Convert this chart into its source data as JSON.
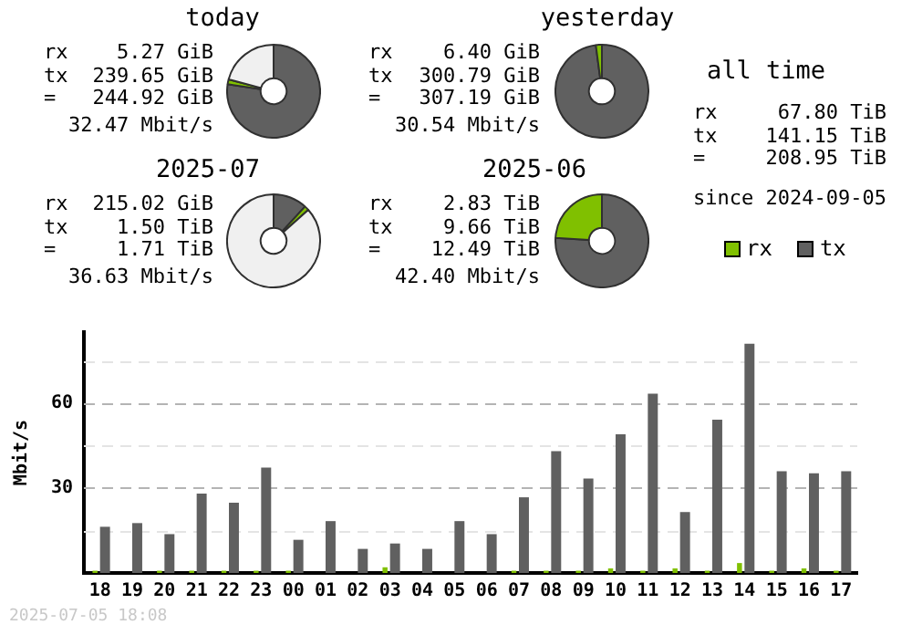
{
  "chart_data": [
    {
      "type": "donut",
      "title": "today",
      "categories": [
        null,
        null,
        null
      ],
      "values": [
        77.4,
        1.7,
        20.9
      ],
      "colors": [
        "#606060",
        "#80c000",
        "#f0f0f0"
      ],
      "annotations": [
        "rx",
        "5.27 GiB",
        "tx",
        "239.65 GiB",
        "=",
        "244.92 GiB",
        "32.47 Mbit/s"
      ]
    },
    {
      "type": "donut",
      "title": "yesterday",
      "categories": [
        null,
        null
      ],
      "values": [
        97.9,
        2.1
      ],
      "colors": [
        "#606060",
        "#80c000"
      ],
      "annotations": [
        "rx",
        "6.40 GiB",
        "tx",
        "300.79 GiB",
        "=",
        "307.19 GiB",
        "30.54 Mbit/s"
      ]
    },
    {
      "type": "other",
      "title": "all time",
      "annotations": [
        "rx",
        "67.80 TiB",
        "tx",
        "141.15 TiB",
        "=",
        "208.95 TiB",
        "since 2024-09-05"
      ]
    },
    {
      "type": "donut",
      "title": "2025-07",
      "categories": [
        null,
        null,
        null
      ],
      "values": [
        11.8,
        1.6,
        86.6
      ],
      "colors": [
        "#606060",
        "#80c000",
        "#f0f0f0"
      ],
      "annotations": [
        "rx",
        "215.02 GiB",
        "tx",
        "1.50 TiB",
        "=",
        "1.71 TiB",
        "36.63 Mbit/s"
      ]
    },
    {
      "type": "donut",
      "title": "2025-06",
      "categories": [
        null,
        null
      ],
      "values": [
        76,
        24
      ],
      "colors": [
        "#606060",
        "#80c000"
      ],
      "annotations": [
        "rx",
        "2.83 TiB",
        "tx",
        "9.66 TiB",
        "=",
        "12.49 TiB",
        "42.40 Mbit/s"
      ]
    },
    {
      "type": "bar",
      "ylabel": "Mbit/s",
      "categories": [
        "18",
        "19",
        "20",
        "21",
        "22",
        "23",
        "00",
        "01",
        "02",
        "03",
        "04",
        "05",
        "06",
        "07",
        "08",
        "09",
        "10",
        "11",
        "12",
        "13",
        "14",
        "15",
        "16",
        "17"
      ],
      "series": [
        {
          "name": "rx",
          "color": "#80c000",
          "values": [
            0.8,
            0,
            0.8,
            0.8,
            0.8,
            0.8,
            0.8,
            0,
            0,
            2,
            0,
            0,
            0,
            0.8,
            0.8,
            0.8,
            1.6,
            0.8,
            1.6,
            0.8,
            3.5,
            0.8,
            1.6,
            0.8
          ]
        },
        {
          "name": "tx",
          "color": "#606060",
          "values": [
            16.3,
            17.6,
            13.7,
            28,
            24.8,
            37.2,
            11.7,
            18.3,
            8.5,
            10.4,
            8.5,
            18.3,
            13.7,
            26.7,
            43,
            33.3,
            48.9,
            63.3,
            21.5,
            54.1,
            80.9,
            35.9,
            35.2,
            35.9
          ]
        }
      ],
      "ylim": [
        0,
        85
      ],
      "yticks": [
        {
          "value": 15,
          "label": null
        },
        30,
        {
          "value": 45,
          "label": null
        },
        60,
        {
          "value": 75,
          "label": null
        }
      ],
      "grid": "y",
      "legend": "top right",
      "annotations": [
        "2025-07-05 18:08"
      ]
    }
  ]
}
